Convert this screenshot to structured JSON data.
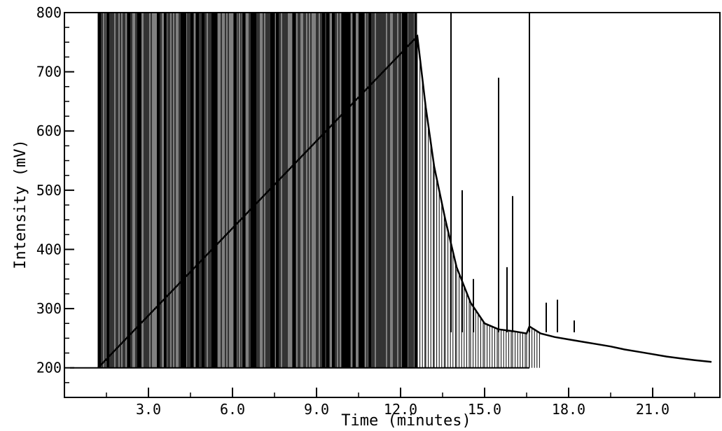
{
  "chart_data": {
    "type": "line",
    "title": "",
    "xlabel": "Time (minutes)",
    "ylabel": "Intensity (mV)",
    "xlim": [
      0.0,
      23.4
    ],
    "ylim": [
      150,
      800
    ],
    "x_ticks": [
      3.0,
      6.0,
      9.0,
      12.0,
      15.0,
      18.0,
      21.0
    ],
    "x_tick_labels": [
      "3.0",
      "6.0",
      "9.0",
      "12.0",
      "15.0",
      "18.0",
      "21.0"
    ],
    "y_ticks": [
      200,
      300,
      400,
      500,
      600,
      700,
      800
    ],
    "y_tick_labels": [
      "200",
      "300",
      "400",
      "500",
      "600",
      "700",
      "800"
    ],
    "grid": false,
    "legend": "none",
    "baseline_mV": 200,
    "dense_region": {
      "x_start": 1.2,
      "x_end": 12.6,
      "low_mV": 200,
      "high_mV": 800
    },
    "series": [
      {
        "x": [
          1.2,
          12.6,
          12.9,
          13.2,
          13.6,
          14.0,
          14.5,
          15.0,
          15.5,
          16.0,
          16.5,
          16.6,
          17.0,
          17.5,
          18.0,
          18.5,
          19.0,
          19.5,
          20.0,
          20.5,
          21.0,
          21.5,
          22.0,
          22.5,
          23.1
        ],
        "y": [
          200,
          760,
          640,
          540,
          450,
          370,
          310,
          275,
          265,
          262,
          258,
          270,
          258,
          252,
          248,
          244,
          240,
          236,
          231,
          227,
          223,
          219,
          216,
          213,
          210
        ]
      }
    ],
    "peaks": [
      {
        "x": 13.8,
        "y": 800
      },
      {
        "x": 14.2,
        "y": 500
      },
      {
        "x": 14.6,
        "y": 350
      },
      {
        "x": 15.5,
        "y": 690
      },
      {
        "x": 15.8,
        "y": 370
      },
      {
        "x": 16.0,
        "y": 490
      },
      {
        "x": 16.6,
        "y": 800
      },
      {
        "x": 17.2,
        "y": 310
      },
      {
        "x": 17.6,
        "y": 315
      },
      {
        "x": 18.2,
        "y": 280
      }
    ]
  }
}
